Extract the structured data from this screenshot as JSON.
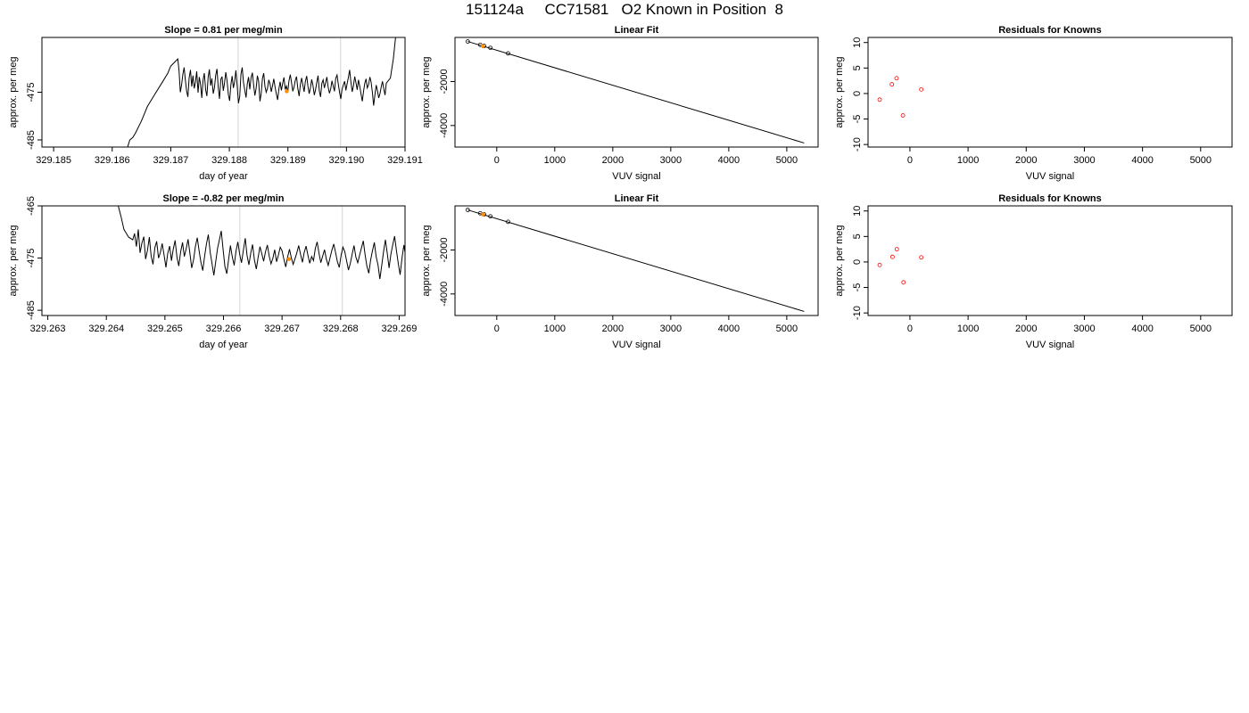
{
  "title": "151124a     CC71581   O2 Known in Position  8",
  "colors": {
    "line": "#000000",
    "grid": "#d3d3d3",
    "marker": "#ff8c00",
    "residual": "#ff0000",
    "box": "#000000"
  },
  "chart_data": [
    {
      "type": "line",
      "title": "Slope =  0.81  per meg/min",
      "xlabel": "day of year",
      "ylabel": "approx. per meg",
      "xlim": [
        329.1848,
        329.191
      ],
      "ylim": [
        -486.5,
        -463.5
      ],
      "xticks": [
        329.185,
        329.186,
        329.187,
        329.188,
        329.189,
        329.19,
        329.191
      ],
      "xtick_labels": [
        "329.185",
        "329.186",
        "329.187",
        "329.188",
        "329.189",
        "329.190",
        "329.191"
      ],
      "yticks": [
        -475,
        -485
      ],
      "ytick_labels": [
        "-475",
        "-485"
      ],
      "vlines": [
        329.18815,
        329.1899
      ],
      "highlight": {
        "x": 329.18898,
        "y": -474.8
      },
      "start_x": 329.18625,
      "end_x": 329.18712,
      "pre_curve": [
        [
          329.18625,
          -487.0
        ],
        [
          329.1863,
          -485.0
        ],
        [
          329.18635,
          -484.5
        ],
        [
          329.1864,
          -483.5
        ],
        [
          329.1865,
          -481.0
        ],
        [
          329.1866,
          -478.0
        ],
        [
          329.1867,
          -476.0
        ],
        [
          329.18685,
          -473.0
        ],
        [
          329.18695,
          -471.0
        ],
        [
          329.187,
          -469.5
        ],
        [
          329.18712,
          -468.0
        ]
      ],
      "series_x": [
        329.18712,
        329.19068
      ],
      "series_y": [
        -468.0,
        -470.5,
        -475.0,
        -473.5,
        -471.2,
        -469.8,
        -472.5,
        -474.8,
        -476.0,
        -472.0,
        -470.3,
        -473.8,
        -471.5,
        -474.2,
        -472.9,
        -470.6,
        -475.1,
        -471.8,
        -473.3,
        -476.2,
        -472.5,
        -471.0,
        -474.5,
        -475.8,
        -471.9,
        -470.2,
        -473.6,
        -472.1,
        -475.3,
        -474.0,
        -471.4,
        -470.1,
        -473.9,
        -476.4,
        -472.3,
        -471.7,
        -474.7,
        -473.0,
        -470.8,
        -472.6,
        -475.5,
        -476.8,
        -473.4,
        -471.6,
        -474.1,
        -472.8,
        -470.4,
        -473.7,
        -477.3,
        -475.9,
        -471.2,
        -469.8,
        -472.9,
        -474.6,
        -476.1,
        -473.2,
        -471.8,
        -474.4,
        -472.0,
        -470.9,
        -473.5,
        -475.7,
        -474.2,
        -471.5,
        -472.7,
        -476.9,
        -475.2,
        -472.1,
        -471.0,
        -473.8,
        -475.0,
        -474.1,
        -472.4,
        -473.3,
        -474.9,
        -473.6,
        -472.2,
        -474.0,
        -475.4,
        -476.6,
        -474.3,
        -472.8,
        -474.6,
        -473.1,
        -471.9,
        -474.4,
        -473.7,
        -475.1,
        -472.6,
        -471.3,
        -473.0,
        -474.8,
        -473.9,
        -472.5,
        -471.7,
        -474.2,
        -475.8,
        -473.4,
        -472.0,
        -473.5,
        -474.9,
        -472.7,
        -471.6,
        -473.8,
        -475.3,
        -474.0,
        -472.3,
        -473.6,
        -475.6,
        -474.5,
        -472.9,
        -471.5,
        -474.7,
        -476.0,
        -473.1,
        -472.4,
        -474.1,
        -473.0,
        -471.8,
        -473.9,
        -475.2,
        -474.3,
        -472.6,
        -473.7,
        -474.8,
        -472.1,
        -471.4,
        -473.3,
        -475.0,
        -476.4,
        -474.4,
        -473.5,
        -472.7,
        -474.6,
        -473.2,
        -471.9,
        -470.3,
        -472.8,
        -474.9,
        -473.6,
        -471.7,
        -473.0,
        -474.5,
        -472.4,
        -473.8,
        -475.4,
        -476.9,
        -474.8,
        -473.1,
        -472.2,
        -474.1,
        -473.4,
        -471.8,
        -472.9,
        -475.0,
        -477.8,
        -475.6,
        -473.5,
        -474.7,
        -476.2,
        -475.3,
        -473.9,
        -472.7,
        -474.3,
        -475.6,
        -473.1
      ],
      "post_curve": [
        [
          329.19068,
          -473.1
        ],
        [
          329.19075,
          -472.0
        ],
        [
          329.1908,
          -468.0
        ],
        [
          329.19085,
          -462.0
        ]
      ]
    },
    {
      "type": "scatter",
      "title": "Linear Fit",
      "xlabel": "VUV signal",
      "ylabel": "approx. per meg",
      "xlim": [
        -720,
        5540
      ],
      "ylim": [
        -4980,
        5
      ],
      "xticks": [
        0,
        1000,
        2000,
        3000,
        4000,
        5000
      ],
      "xtick_labels": [
        "0",
        "1000",
        "2000",
        "3000",
        "4000",
        "5000"
      ],
      "yticks": [
        -2000,
        -4000
      ],
      "ytick_labels": [
        "-2000",
        "-4000"
      ],
      "fit_line": [
        [
          -500,
          -180
        ],
        [
          5300,
          -4795
        ]
      ],
      "points": [
        [
          -500,
          -180
        ],
        [
          -285,
          -330
        ],
        [
          -220,
          -380
        ],
        [
          -110,
          -470
        ],
        [
          195,
          -720
        ]
      ],
      "highlight": [
        [
          -240,
          -395
        ]
      ]
    },
    {
      "type": "scatter",
      "title": "Residuals for Knowns",
      "xlabel": "VUV signal",
      "ylabel": "approx. per meg",
      "xlim": [
        -720,
        5540
      ],
      "ylim": [
        -10.5,
        11
      ],
      "xticks": [
        0,
        1000,
        2000,
        3000,
        4000,
        5000
      ],
      "xtick_labels": [
        "0",
        "1000",
        "2000",
        "3000",
        "4000",
        "5000"
      ],
      "yticks": [
        10,
        5,
        0,
        -5,
        -10
      ],
      "ytick_labels": [
        "10",
        "5",
        "0",
        "-5",
        "-10"
      ],
      "points": [
        [
          -520,
          -1.2
        ],
        [
          -310,
          1.8
        ],
        [
          -230,
          3.0
        ],
        [
          -120,
          -4.3
        ],
        [
          195,
          0.8
        ]
      ]
    },
    {
      "type": "line",
      "title": "Slope =  -0.82  per meg/min",
      "xlabel": "day of year",
      "ylabel": "approx. per meg",
      "xlim": [
        329.2629,
        329.2691
      ],
      "ylim": [
        -486,
        -465
      ],
      "xticks": [
        329.263,
        329.264,
        329.265,
        329.266,
        329.267,
        329.268,
        329.269
      ],
      "xtick_labels": [
        "329.263",
        "329.264",
        "329.265",
        "329.266",
        "329.267",
        "329.268",
        "329.269"
      ],
      "yticks": [
        -465,
        -475,
        -485
      ],
      "ytick_labels": [
        "-465",
        "-475",
        "-485"
      ],
      "vlines": [
        329.26628,
        329.26803
      ],
      "highlight": {
        "x": 329.26712,
        "y": -475.2
      },
      "pre_curve": [
        [
          329.26418,
          -464.0
        ],
        [
          329.26425,
          -467.0
        ],
        [
          329.2643,
          -469.5
        ],
        [
          329.26438,
          -471.0
        ],
        [
          329.26445,
          -471.5
        ]
      ],
      "series_x": [
        329.26445,
        329.2693
      ],
      "series_y": [
        -471.5,
        -470.3,
        -472.8,
        -469.5,
        -474.0,
        -472.1,
        -470.9,
        -475.2,
        -473.5,
        -471.0,
        -474.6,
        -476.2,
        -473.0,
        -471.8,
        -475.0,
        -473.9,
        -472.2,
        -474.4,
        -476.8,
        -474.1,
        -472.7,
        -475.5,
        -473.3,
        -471.6,
        -474.9,
        -476.5,
        -473.8,
        -472.0,
        -474.7,
        -473.2,
        -471.4,
        -474.0,
        -476.9,
        -475.3,
        -472.8,
        -471.1,
        -473.6,
        -475.8,
        -477.4,
        -474.6,
        -472.3,
        -470.5,
        -473.9,
        -476.0,
        -478.3,
        -475.7,
        -473.1,
        -471.5,
        -469.8,
        -473.4,
        -476.6,
        -478.0,
        -475.2,
        -472.6,
        -474.8,
        -476.4,
        -473.7,
        -471.9,
        -474.3,
        -475.9,
        -473.5,
        -471.2,
        -474.5,
        -476.3,
        -474.0,
        -472.4,
        -475.4,
        -477.1,
        -474.9,
        -472.8,
        -474.2,
        -475.6,
        -473.8,
        -472.5,
        -474.6,
        -476.1,
        -475.0,
        -473.4,
        -475.7,
        -474.4,
        -472.9,
        -473.6,
        -475.3,
        -476.7,
        -474.8,
        -473.3,
        -474.9,
        -476.2,
        -475.1,
        -474.0,
        -472.6,
        -474.3,
        -475.8,
        -473.9,
        -472.7,
        -474.5,
        -476.0,
        -474.7,
        -475.5,
        -473.2,
        -471.9,
        -474.1,
        -475.9,
        -474.6,
        -473.4,
        -475.2,
        -476.4,
        -474.9,
        -473.5,
        -472.3,
        -474.0,
        -475.7,
        -476.8,
        -474.4,
        -472.9,
        -473.8,
        -475.6,
        -477.3,
        -476.0,
        -474.2,
        -472.6,
        -474.8,
        -475.9,
        -474.5,
        -473.1,
        -471.7,
        -474.3,
        -476.6,
        -477.9,
        -475.4,
        -473.6,
        -472.0,
        -474.7,
        -476.3,
        -479.0,
        -476.5,
        -473.8,
        -471.5,
        -474.1,
        -476.9,
        -474.2,
        -472.4,
        -470.8,
        -473.6,
        -476.1,
        -478.2,
        -475.0,
        -472.5,
        -474.7,
        -473.0,
        -471.3,
        -473.9,
        -476.4,
        -474.5,
        -472.8
      ],
      "post_curve": [
        [
          329.2693,
          -472.8
        ],
        [
          329.26935,
          -474.0
        ],
        [
          329.2694,
          -478.0
        ],
        [
          329.26945,
          -483.0
        ],
        [
          329.2695,
          -487.0
        ]
      ]
    },
    {
      "type": "scatter",
      "title": "Linear Fit",
      "xlabel": "VUV signal",
      "ylabel": "approx. per meg",
      "xlim": [
        -720,
        5540
      ],
      "ylim": [
        -4980,
        5
      ],
      "xticks": [
        0,
        1000,
        2000,
        3000,
        4000,
        5000
      ],
      "xtick_labels": [
        "0",
        "1000",
        "2000",
        "3000",
        "4000",
        "5000"
      ],
      "yticks": [
        -2000,
        -4000
      ],
      "ytick_labels": [
        "-2000",
        "-4000"
      ],
      "fit_line": [
        [
          -500,
          -180
        ],
        [
          5300,
          -4795
        ]
      ],
      "points": [
        [
          -500,
          -180
        ],
        [
          -285,
          -330
        ],
        [
          -220,
          -380
        ],
        [
          -110,
          -470
        ],
        [
          195,
          -720
        ]
      ],
      "highlight": [
        [
          -235,
          -390
        ]
      ]
    },
    {
      "type": "scatter",
      "title": "Residuals for Knowns",
      "xlabel": "VUV signal",
      "ylabel": "approx. per meg",
      "xlim": [
        -720,
        5540
      ],
      "ylim": [
        -10.5,
        11
      ],
      "xticks": [
        0,
        1000,
        2000,
        3000,
        4000,
        5000
      ],
      "xtick_labels": [
        "0",
        "1000",
        "2000",
        "3000",
        "4000",
        "5000"
      ],
      "yticks": [
        10,
        5,
        0,
        -5,
        -10
      ],
      "ytick_labels": [
        "10",
        "5",
        "0",
        "-5",
        "-10"
      ],
      "points": [
        [
          -520,
          -0.6
        ],
        [
          -300,
          1.0
        ],
        [
          -225,
          2.5
        ],
        [
          -110,
          -4.0
        ],
        [
          195,
          0.9
        ]
      ]
    }
  ]
}
